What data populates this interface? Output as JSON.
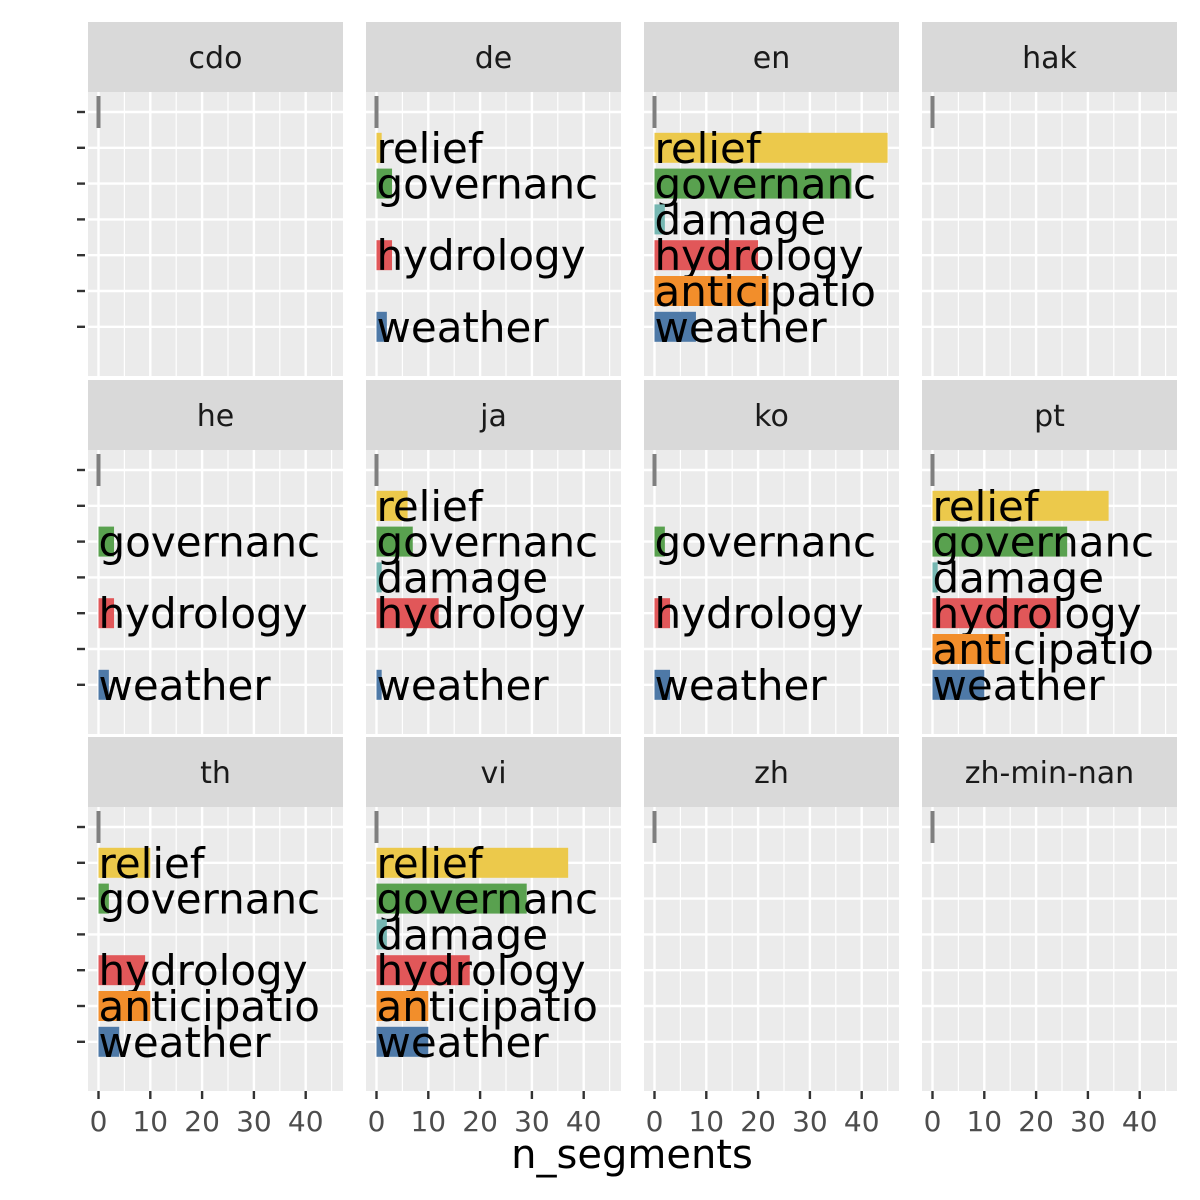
{
  "chart_data": {
    "type": "bar",
    "orientation": "horizontal",
    "xlabel": "n_segments",
    "ylabel": "",
    "xlim": [
      0,
      48
    ],
    "x_ticks": [
      0,
      10,
      20,
      30,
      40
    ],
    "x_tick_labels": [
      "0",
      "10",
      "20",
      "30",
      "40"
    ],
    "grid": true,
    "facet_layout": {
      "nrow": 3,
      "ncol": 4
    },
    "categories": [
      "",
      "relief",
      "governance",
      "damage",
      "hydrology",
      "anticipation",
      "weather"
    ],
    "category_display": [
      "|",
      "relief",
      "governanc",
      "damage",
      "hydrology",
      "anticipatio",
      "weather"
    ],
    "colors": {
      "": "#7f7f7f",
      "relief": "#ecc94b",
      "governance": "#59a14f",
      "damage": "#76b7b2",
      "hydrology": "#e15759",
      "anticipation": "#f28e2b",
      "weather": "#4e79a7"
    },
    "panels": [
      {
        "facet": "cdo",
        "values": {
          "": 1
        }
      },
      {
        "facet": "de",
        "values": {
          "": 1,
          "relief": 1,
          "governance": 3,
          "hydrology": 3,
          "weather": 2
        }
      },
      {
        "facet": "en",
        "values": {
          "": 1,
          "relief": 45,
          "governance": 38,
          "damage": 2,
          "hydrology": 20,
          "anticipation": 22,
          "weather": 8
        }
      },
      {
        "facet": "hak",
        "values": {
          "": 1
        }
      },
      {
        "facet": "he",
        "values": {
          "": 1,
          "governance": 3,
          "hydrology": 3,
          "weather": 2
        }
      },
      {
        "facet": "ja",
        "values": {
          "": 1,
          "relief": 6,
          "governance": 7,
          "damage": 1,
          "hydrology": 12,
          "weather": 1
        }
      },
      {
        "facet": "ko",
        "values": {
          "": 1,
          "governance": 2,
          "hydrology": 3,
          "weather": 3
        }
      },
      {
        "facet": "pt",
        "values": {
          "": 1,
          "relief": 34,
          "governance": 26,
          "damage": 1,
          "hydrology": 24,
          "anticipation": 14,
          "weather": 10
        }
      },
      {
        "facet": "th",
        "values": {
          "": 1,
          "relief": 10,
          "governance": 2,
          "hydrology": 9,
          "anticipation": 10,
          "weather": 4
        }
      },
      {
        "facet": "vi",
        "values": {
          "": 1,
          "relief": 37,
          "governance": 29,
          "damage": 2,
          "hydrology": 18,
          "anticipation": 10,
          "weather": 10
        }
      },
      {
        "facet": "zh",
        "values": {
          "": 1
        }
      },
      {
        "facet": "zh-min-nan",
        "values": {
          "": 1
        }
      }
    ]
  }
}
